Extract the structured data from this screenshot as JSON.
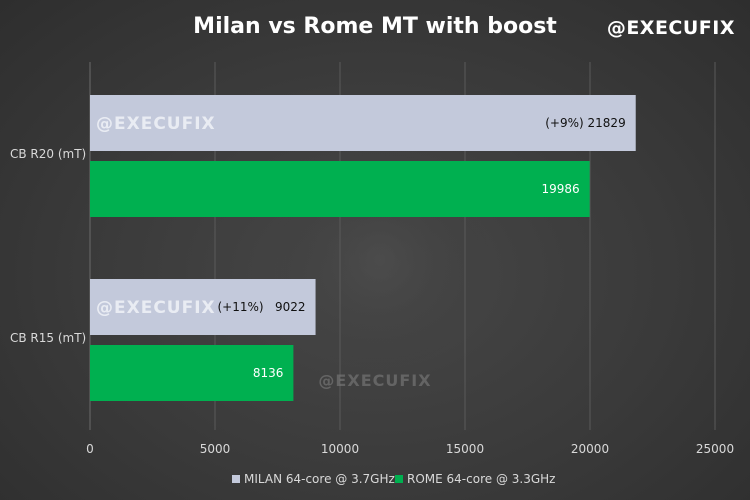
{
  "title": "Milan vs Rome MT with boost",
  "watermark": "@EXECUFIX",
  "colors": {
    "milan": "#c3c9db",
    "rome": "#00b050",
    "background": "#3a3a3a",
    "grid": "#5a5a5a"
  },
  "chart_data": {
    "type": "bar",
    "orientation": "horizontal",
    "title": "Milan vs Rome MT with boost",
    "categories": [
      "CB R20 (mT)",
      "CB R15 (mT)"
    ],
    "series": [
      {
        "name": "MILAN 64-core @ 3.7GHz",
        "values": [
          21829,
          9022
        ],
        "annotations": [
          "(+9%)",
          "(+11%)"
        ],
        "color": "#c3c9db"
      },
      {
        "name": "ROME 64-core @ 3.3GHz",
        "values": [
          19986,
          8136
        ],
        "color": "#00b050"
      }
    ],
    "xlim": [
      0,
      25000
    ],
    "xticks": [
      0,
      5000,
      10000,
      15000,
      20000,
      25000
    ],
    "grid": "vertical",
    "legend": "bottom"
  }
}
